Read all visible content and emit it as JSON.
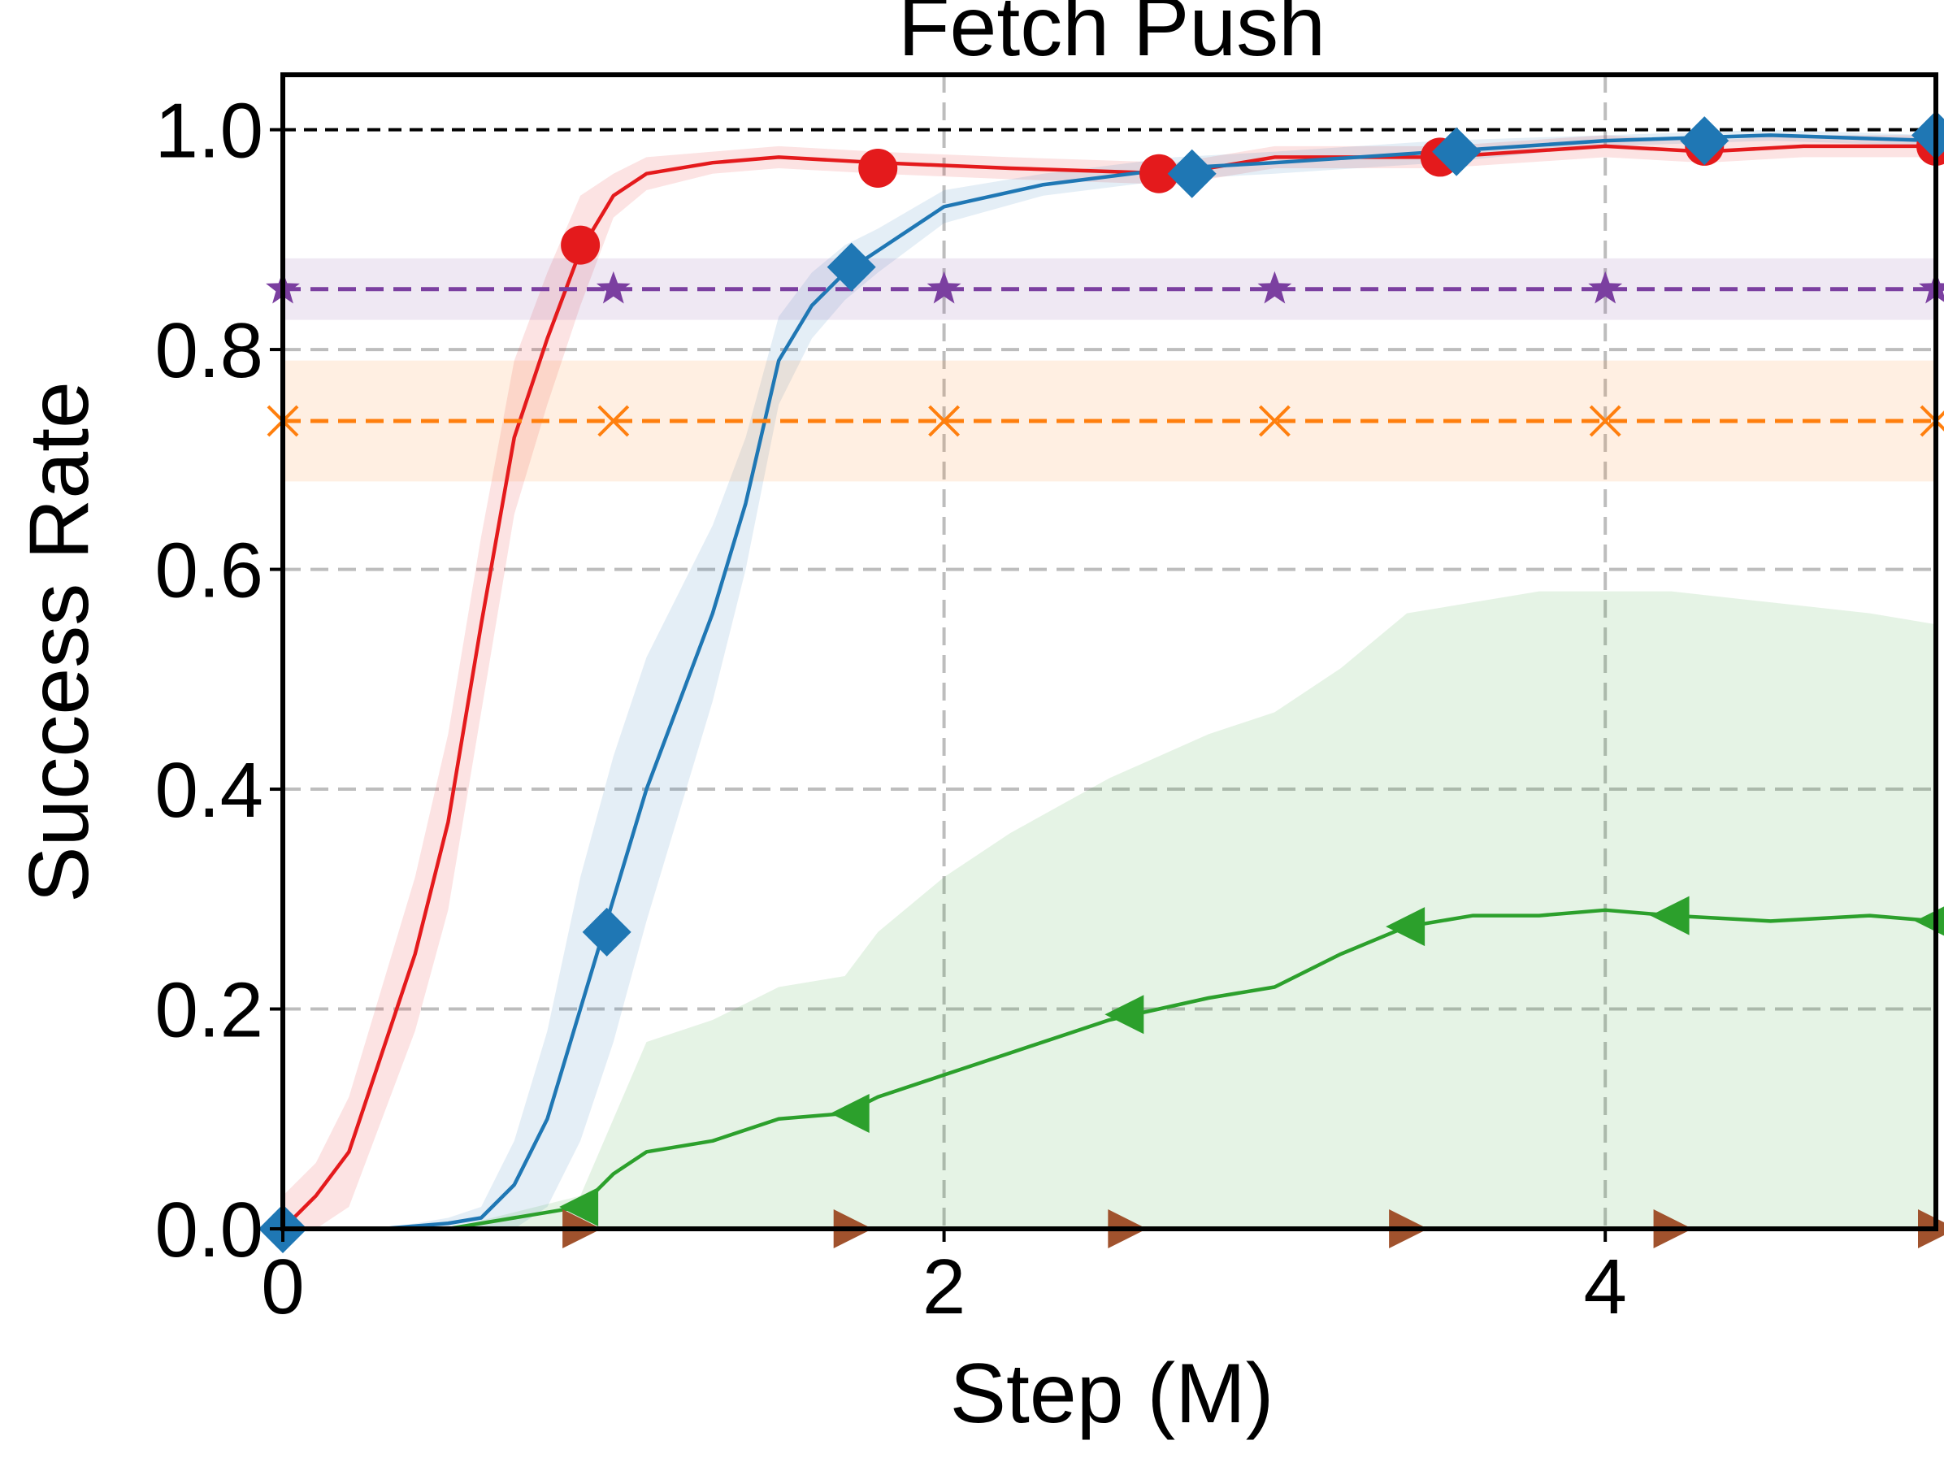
{
  "chart_data": {
    "type": "line",
    "title": "Fetch Push",
    "xlabel": "Step (M)",
    "ylabel": "Success Rate",
    "xlim": [
      0,
      5
    ],
    "ylim": [
      0,
      1.05
    ],
    "x_ticks": [
      0,
      2,
      4
    ],
    "x_tick_labels": [
      "0",
      "2",
      "4"
    ],
    "y_ticks": [
      0.0,
      0.2,
      0.4,
      0.6,
      0.8,
      1.0
    ],
    "y_tick_labels": [
      "0.0",
      "0.2",
      "0.4",
      "0.6",
      "0.8",
      "1.0"
    ],
    "grid": true,
    "reference_line": {
      "y": 1.0,
      "color": "#000000",
      "style": "dashed"
    },
    "series": [
      {
        "color": "#e41a1c",
        "marker": "circle",
        "style": "solid",
        "x": [
          0,
          0.1,
          0.2,
          0.3,
          0.4,
          0.5,
          0.6,
          0.7,
          0.8,
          0.9,
          1.0,
          1.1,
          1.3,
          1.5,
          1.8,
          2.2,
          2.7,
          3.0,
          3.5,
          4.0,
          4.3,
          4.6,
          5.0
        ],
        "y": [
          0.0,
          0.03,
          0.07,
          0.16,
          0.25,
          0.37,
          0.55,
          0.72,
          0.81,
          0.89,
          0.94,
          0.96,
          0.97,
          0.975,
          0.97,
          0.965,
          0.96,
          0.975,
          0.975,
          0.985,
          0.98,
          0.985,
          0.985
        ],
        "band": [
          0.03,
          0.03,
          0.05,
          0.06,
          0.07,
          0.08,
          0.08,
          0.07,
          0.06,
          0.05,
          0.02,
          0.015,
          0.01,
          0.01,
          0.01,
          0.01,
          0.01,
          0.01,
          0.01,
          0.01,
          0.01,
          0.01,
          0.01
        ],
        "marker_x": [
          0.9,
          1.8,
          2.65,
          3.5,
          4.3,
          5.0
        ],
        "marker_y": [
          0.895,
          0.965,
          0.96,
          0.975,
          0.985,
          0.985
        ]
      },
      {
        "color": "#1f77b4",
        "marker": "diamond",
        "style": "solid",
        "x": [
          0,
          0.3,
          0.5,
          0.6,
          0.7,
          0.8,
          0.9,
          1.0,
          1.1,
          1.2,
          1.3,
          1.4,
          1.5,
          1.6,
          1.7,
          1.8,
          2.0,
          2.3,
          2.7,
          3.0,
          3.5,
          4.0,
          4.5,
          5.0
        ],
        "y": [
          0.0,
          0.0,
          0.005,
          0.01,
          0.04,
          0.1,
          0.2,
          0.3,
          0.4,
          0.48,
          0.56,
          0.66,
          0.79,
          0.84,
          0.87,
          0.89,
          0.93,
          0.95,
          0.965,
          0.97,
          0.98,
          0.99,
          0.995,
          0.99
        ],
        "band": [
          0.0,
          0.0,
          0.005,
          0.01,
          0.04,
          0.08,
          0.12,
          0.13,
          0.12,
          0.1,
          0.08,
          0.06,
          0.04,
          0.03,
          0.025,
          0.02,
          0.015,
          0.01,
          0.01,
          0.01,
          0.01,
          0.005,
          0.005,
          0.005
        ],
        "marker_x": [
          0,
          0.98,
          1.72,
          2.75,
          3.55,
          4.3,
          5.0
        ],
        "marker_y": [
          0.0,
          0.27,
          0.875,
          0.96,
          0.98,
          0.99,
          0.995
        ]
      },
      {
        "color": "#2ca02c",
        "marker": "triangle-left",
        "style": "solid",
        "x": [
          0,
          0.5,
          0.9,
          1.0,
          1.1,
          1.3,
          1.5,
          1.7,
          1.8,
          2.0,
          2.2,
          2.5,
          2.8,
          3.0,
          3.2,
          3.4,
          3.6,
          3.8,
          4.0,
          4.2,
          4.5,
          4.8,
          5.0
        ],
        "y": [
          0.0,
          0.0,
          0.02,
          0.05,
          0.07,
          0.08,
          0.1,
          0.105,
          0.12,
          0.14,
          0.16,
          0.19,
          0.21,
          0.22,
          0.25,
          0.275,
          0.285,
          0.285,
          0.29,
          0.285,
          0.28,
          0.285,
          0.28
        ],
        "band_low": [
          0.0,
          0.0,
          0.0,
          0.0,
          0.0,
          0.0,
          0.0,
          0.0,
          0.0,
          0.0,
          0.0,
          0.0,
          0.0,
          0.0,
          0.0,
          0.0,
          0.0,
          0.0,
          0.0,
          0.0,
          0.0,
          0.0,
          0.0
        ],
        "band_high": [
          0.0,
          0.0,
          0.03,
          0.1,
          0.17,
          0.19,
          0.22,
          0.23,
          0.27,
          0.32,
          0.36,
          0.41,
          0.45,
          0.47,
          0.51,
          0.56,
          0.57,
          0.58,
          0.58,
          0.58,
          0.57,
          0.56,
          0.55
        ],
        "marker_x": [
          0.9,
          1.72,
          2.55,
          3.4,
          4.2,
          5.0
        ],
        "marker_y": [
          0.02,
          0.105,
          0.195,
          0.275,
          0.285,
          0.28
        ]
      },
      {
        "color": "#a0522d",
        "marker": "triangle-right",
        "style": "solid",
        "x": [
          0,
          1.0,
          2.0,
          3.0,
          4.0,
          5.0
        ],
        "y": [
          0.0,
          0.0,
          0.0,
          0.0,
          0.0,
          0.0
        ],
        "marker_x": [
          0.9,
          1.72,
          2.55,
          3.4,
          4.2,
          5.0
        ],
        "marker_y": [
          0.0,
          0.0,
          0.0,
          0.0,
          0.0,
          0.0
        ]
      },
      {
        "color": "#7b3fa0",
        "marker": "star",
        "style": "dashed",
        "x": [
          0,
          5.0
        ],
        "y": [
          0.855,
          0.855
        ],
        "band": [
          0.028,
          0.028
        ],
        "marker_x": [
          0,
          1.0,
          2.0,
          3.0,
          4.0,
          5.0
        ],
        "marker_y": [
          0.855,
          0.855,
          0.855,
          0.855,
          0.855,
          0.855
        ]
      },
      {
        "color": "#ff7f0e",
        "marker": "x",
        "style": "dashed",
        "x": [
          0,
          5.0
        ],
        "y": [
          0.735,
          0.735
        ],
        "band": [
          0.055,
          0.055
        ],
        "marker_x": [
          0,
          1.0,
          2.0,
          3.0,
          4.0,
          5.0
        ],
        "marker_y": [
          0.735,
          0.735,
          0.735,
          0.735,
          0.735,
          0.735
        ]
      }
    ]
  }
}
